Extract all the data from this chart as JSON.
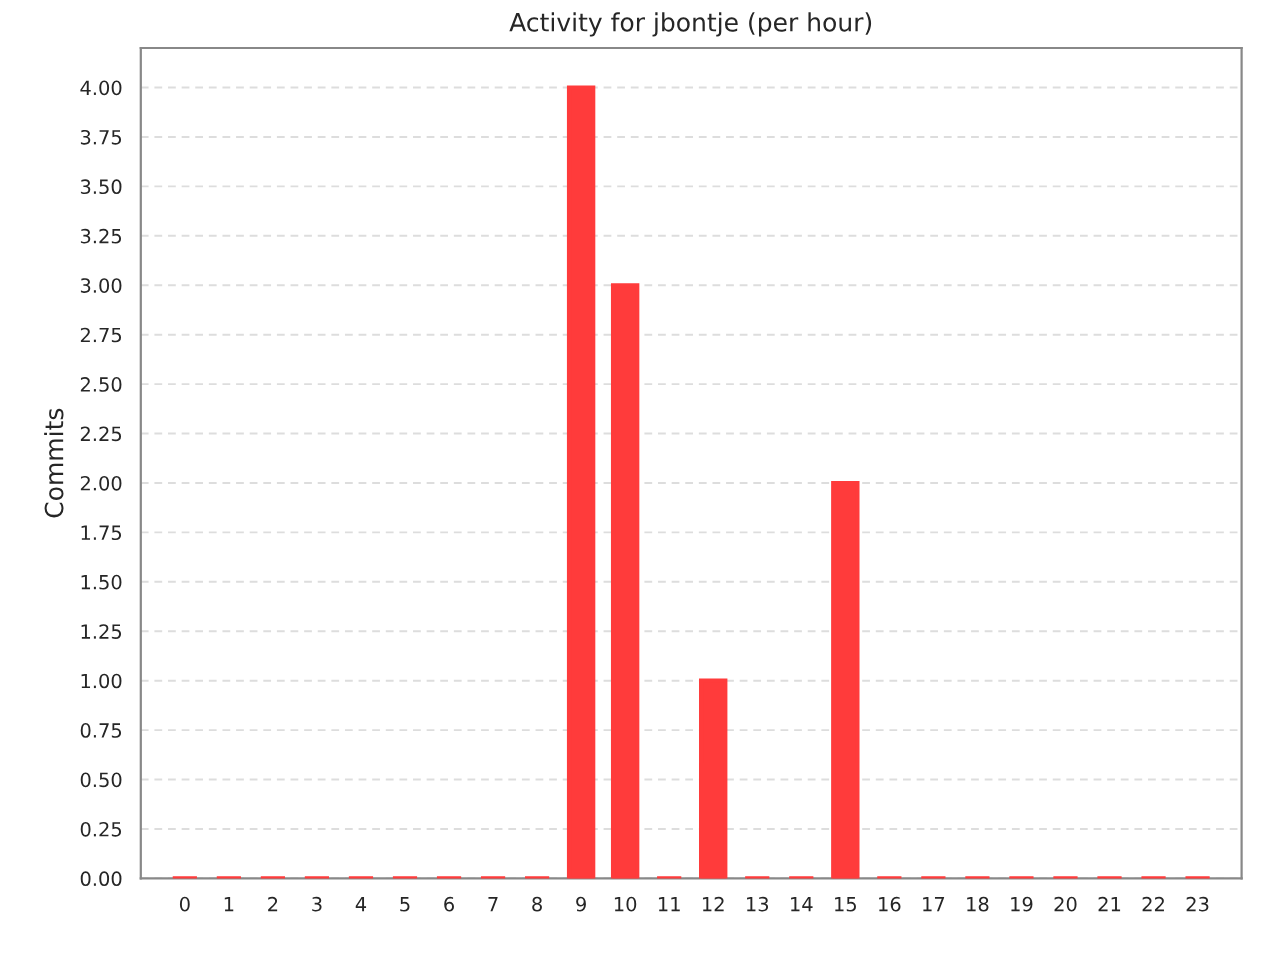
{
  "chart_data": {
    "type": "bar",
    "title": "Activity for jbontje (per hour)",
    "ylabel": "Commits",
    "categories": [
      "0",
      "1",
      "2",
      "3",
      "4",
      "5",
      "6",
      "7",
      "8",
      "9",
      "10",
      "11",
      "12",
      "13",
      "14",
      "15",
      "16",
      "17",
      "18",
      "19",
      "20",
      "21",
      "22",
      "23"
    ],
    "values": [
      0,
      0,
      0,
      0,
      0,
      0,
      0,
      0,
      0,
      4,
      3,
      0,
      1,
      0,
      0,
      2,
      0,
      0,
      0,
      0,
      0,
      0,
      0,
      0
    ],
    "color": "#ff3b3b",
    "ylim": [
      0,
      4.2
    ],
    "yticks": [
      {
        "value": 0,
        "label": "0.00"
      },
      {
        "value": 0.25,
        "label": "0.25"
      },
      {
        "value": 0.5,
        "label": "0.50"
      },
      {
        "value": 0.75,
        "label": "0.75"
      },
      {
        "value": 1,
        "label": "1.00"
      },
      {
        "value": 1.25,
        "label": "1.25"
      },
      {
        "value": 1.5,
        "label": "1.50"
      },
      {
        "value": 1.75,
        "label": "1.75"
      },
      {
        "value": 2,
        "label": "2.00"
      },
      {
        "value": 2.25,
        "label": "2.25"
      },
      {
        "value": 2.5,
        "label": "2.50"
      },
      {
        "value": 2.75,
        "label": "2.75"
      },
      {
        "value": 3,
        "label": "3.00"
      },
      {
        "value": 3.25,
        "label": "3.25"
      },
      {
        "value": 3.5,
        "label": "3.50"
      },
      {
        "value": 3.75,
        "label": "3.75"
      },
      {
        "value": 4,
        "label": "4.00"
      }
    ],
    "grid": "y",
    "legend": false
  }
}
